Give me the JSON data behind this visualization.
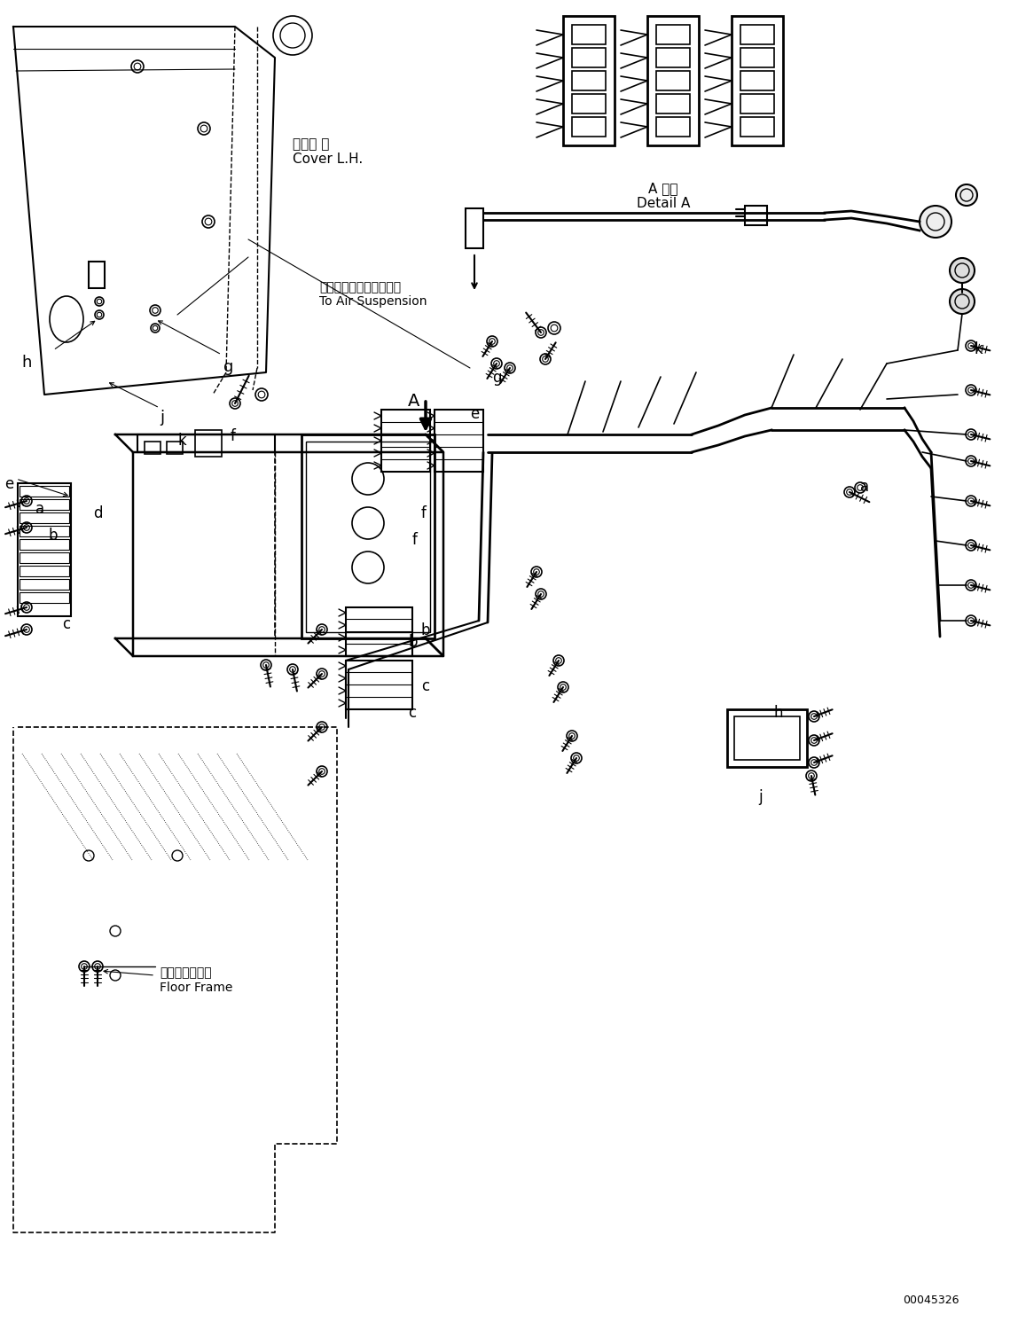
{
  "bg_color": "#ffffff",
  "line_color": "#000000",
  "fig_width": 11.48,
  "fig_height": 14.91,
  "dpi": 100,
  "part_number": "00045326",
  "labels": {
    "cover_lh_jp": "カバー 左",
    "cover_lh_en": "Cover L.H.",
    "floor_frame_jp": "フロアフレーム",
    "floor_frame_en": "Floor Frame",
    "air_suspension_jp": "エアーサスペンションへ",
    "air_suspension_en": "To Air Suspension",
    "detail_jp": "A 詳細",
    "detail_en": "Detail A",
    "arrow_A": "A"
  }
}
